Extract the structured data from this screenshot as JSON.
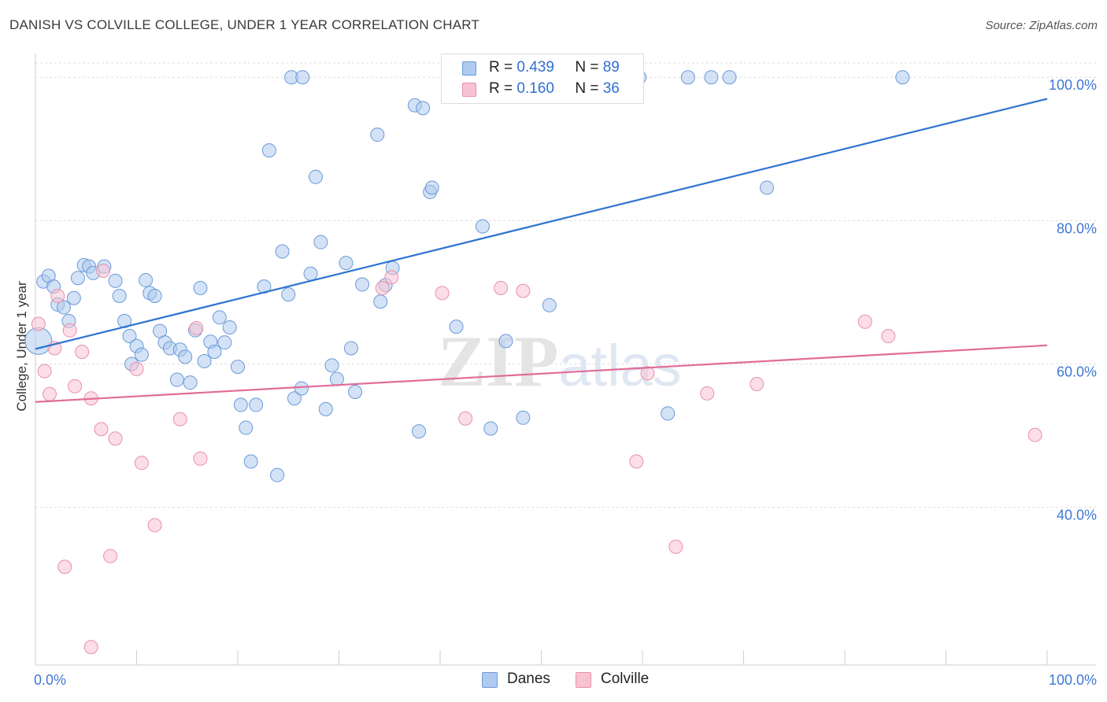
{
  "title": "DANISH VS COLVILLE COLLEGE, UNDER 1 YEAR CORRELATION CHART",
  "source": "Source: ZipAtlas.com",
  "watermark": "ZIPatlas",
  "legend_top": [
    {
      "series": "Danes",
      "r_label": "R =",
      "r_value": "0.439",
      "n_label": "N =",
      "n_value": "89"
    },
    {
      "series": "Colville",
      "r_label": "R =",
      "r_value": "0.160",
      "n_label": "N =",
      "n_value": "36"
    }
  ],
  "legend_bottom": [
    {
      "label": "Danes"
    },
    {
      "label": "Colville"
    }
  ],
  "colors": {
    "danes_fill": "#aecbef",
    "danes_stroke": "#6b9ad8",
    "danes_line": "#2f74d0",
    "colville_fill": "#f7c3d3",
    "colville_stroke": "#e890ab",
    "colville_line": "#e06c98",
    "tick_label": "#3f78d4",
    "grid": "#dddddd"
  },
  "chart_data": {
    "type": "scatter",
    "title": "DANISH VS COLVILLE COLLEGE, UNDER 1 YEAR CORRELATION CHART",
    "xlabel": "",
    "ylabel": "College, Under 1 year",
    "xlim": [
      0,
      100
    ],
    "ylim": [
      18,
      102
    ],
    "x_tick_labels": [
      "0.0%",
      "100.0%"
    ],
    "y_ticks": [
      40,
      60,
      80,
      100
    ],
    "y_tick_labels": [
      "40.0%",
      "60.0%",
      "80.0%",
      "100.0%"
    ],
    "grid": true,
    "series": [
      {
        "name": "Danes",
        "trend": {
          "x": [
            0,
            100
          ],
          "y": [
            62.1,
            97.0
          ]
        },
        "points": [
          [
            0.3,
            63.2,
            2
          ],
          [
            0.8,
            71.5,
            1
          ],
          [
            1.3,
            72.3,
            1
          ],
          [
            1.8,
            70.8,
            1
          ],
          [
            2.2,
            68.3,
            1
          ],
          [
            2.8,
            67.9,
            1
          ],
          [
            3.3,
            66.0,
            1
          ],
          [
            3.8,
            69.2,
            1
          ],
          [
            4.2,
            72.0,
            1
          ],
          [
            4.8,
            73.8,
            1
          ],
          [
            5.3,
            73.6,
            1
          ],
          [
            5.7,
            72.7,
            1
          ],
          [
            6.8,
            73.6,
            1
          ],
          [
            7.9,
            71.6,
            1
          ],
          [
            8.3,
            69.5,
            1
          ],
          [
            8.8,
            66.0,
            1
          ],
          [
            9.3,
            63.9,
            1
          ],
          [
            9.5,
            60.0,
            1
          ],
          [
            10.0,
            62.5,
            1
          ],
          [
            10.5,
            61.3,
            1
          ],
          [
            10.9,
            71.7,
            1
          ],
          [
            11.3,
            69.9,
            1
          ],
          [
            11.8,
            69.5,
            1
          ],
          [
            12.3,
            64.6,
            1
          ],
          [
            12.8,
            63.0,
            1
          ],
          [
            13.3,
            62.2,
            1
          ],
          [
            14.0,
            57.8,
            1
          ],
          [
            14.3,
            62.0,
            1
          ],
          [
            14.8,
            61.0,
            1
          ],
          [
            15.3,
            57.4,
            1
          ],
          [
            15.8,
            64.7,
            1
          ],
          [
            16.3,
            70.6,
            1
          ],
          [
            16.7,
            60.4,
            1
          ],
          [
            17.3,
            63.1,
            1
          ],
          [
            17.7,
            61.7,
            1
          ],
          [
            18.2,
            66.5,
            1
          ],
          [
            18.7,
            63.0,
            1
          ],
          [
            19.2,
            65.1,
            1
          ],
          [
            20.0,
            59.6,
            1
          ],
          [
            20.3,
            54.3,
            1
          ],
          [
            20.8,
            51.1,
            1
          ],
          [
            21.3,
            46.4,
            1
          ],
          [
            21.8,
            54.3,
            1
          ],
          [
            22.6,
            70.8,
            1
          ],
          [
            23.1,
            89.8,
            1
          ],
          [
            23.9,
            44.5,
            1
          ],
          [
            24.4,
            75.7,
            1
          ],
          [
            25.0,
            69.7,
            1
          ],
          [
            25.6,
            55.2,
            1
          ],
          [
            26.3,
            56.6,
            1
          ],
          [
            27.2,
            72.6,
            1
          ],
          [
            27.7,
            86.1,
            1
          ],
          [
            28.2,
            77.0,
            1
          ],
          [
            28.7,
            53.7,
            1
          ],
          [
            29.3,
            59.8,
            1
          ],
          [
            29.8,
            57.9,
            1
          ],
          [
            30.7,
            74.1,
            1
          ],
          [
            31.2,
            62.2,
            1
          ],
          [
            31.6,
            56.1,
            1
          ],
          [
            32.3,
            71.1,
            1
          ],
          [
            33.8,
            92.0,
            1
          ],
          [
            34.1,
            68.7,
            1
          ],
          [
            34.6,
            71.0,
            1
          ],
          [
            35.3,
            73.4,
            1
          ],
          [
            37.5,
            96.1,
            1
          ],
          [
            37.9,
            50.6,
            1
          ],
          [
            38.3,
            95.7,
            1
          ],
          [
            39.0,
            84.0,
            1
          ],
          [
            39.2,
            84.6,
            1
          ],
          [
            41.6,
            65.2,
            1
          ],
          [
            42.8,
            100.0,
            1
          ],
          [
            44.2,
            79.2,
            1
          ],
          [
            44.6,
            100.0,
            1
          ],
          [
            45.0,
            51.0,
            1
          ],
          [
            46.5,
            63.2,
            1
          ],
          [
            48.2,
            52.5,
            1
          ],
          [
            50.4,
            100.0,
            1
          ],
          [
            50.8,
            68.2,
            1
          ],
          [
            54.7,
            100.0,
            1
          ],
          [
            59.7,
            100.0,
            1
          ],
          [
            62.5,
            53.1,
            1
          ],
          [
            64.5,
            100.0,
            1
          ],
          [
            66.8,
            100.0,
            1
          ],
          [
            68.6,
            100.0,
            1
          ],
          [
            72.3,
            84.6,
            1
          ],
          [
            85.7,
            100.0,
            1
          ],
          [
            25.3,
            100.0,
            1
          ],
          [
            26.4,
            100.0,
            1
          ],
          [
            43.0,
            100.0,
            1
          ]
        ]
      },
      {
        "name": "Colville",
        "trend": {
          "x": [
            0,
            100
          ],
          "y": [
            54.7,
            62.6
          ]
        },
        "points": [
          [
            0.3,
            65.6,
            1
          ],
          [
            0.9,
            59.0,
            1
          ],
          [
            1.4,
            55.8,
            1
          ],
          [
            1.9,
            62.2,
            1
          ],
          [
            2.2,
            69.5,
            1
          ],
          [
            2.9,
            31.7,
            1
          ],
          [
            3.4,
            64.7,
            1
          ],
          [
            3.9,
            56.9,
            1
          ],
          [
            4.6,
            61.7,
            1
          ],
          [
            5.5,
            55.2,
            1
          ],
          [
            5.5,
            20.5,
            1
          ],
          [
            6.7,
            73.0,
            1
          ],
          [
            6.5,
            50.9,
            1
          ],
          [
            7.4,
            33.2,
            1
          ],
          [
            7.9,
            49.6,
            1
          ],
          [
            10.0,
            59.3,
            1
          ],
          [
            10.5,
            46.2,
            1
          ],
          [
            11.8,
            37.5,
            1
          ],
          [
            14.3,
            52.3,
            1
          ],
          [
            15.9,
            65.0,
            1
          ],
          [
            16.3,
            46.8,
            1
          ],
          [
            34.3,
            70.6,
            1
          ],
          [
            35.2,
            72.1,
            1
          ],
          [
            40.2,
            69.9,
            1
          ],
          [
            42.5,
            52.4,
            1
          ],
          [
            46.0,
            70.6,
            1
          ],
          [
            48.2,
            70.2,
            1
          ],
          [
            59.4,
            46.4,
            1
          ],
          [
            60.5,
            58.7,
            1
          ],
          [
            63.3,
            34.5,
            1
          ],
          [
            66.4,
            55.9,
            1
          ],
          [
            71.3,
            57.2,
            1
          ],
          [
            82.0,
            65.9,
            1
          ],
          [
            84.3,
            63.9,
            1
          ],
          [
            98.8,
            50.1,
            1
          ],
          [
            53.4,
            100.0,
            1
          ]
        ]
      }
    ]
  }
}
